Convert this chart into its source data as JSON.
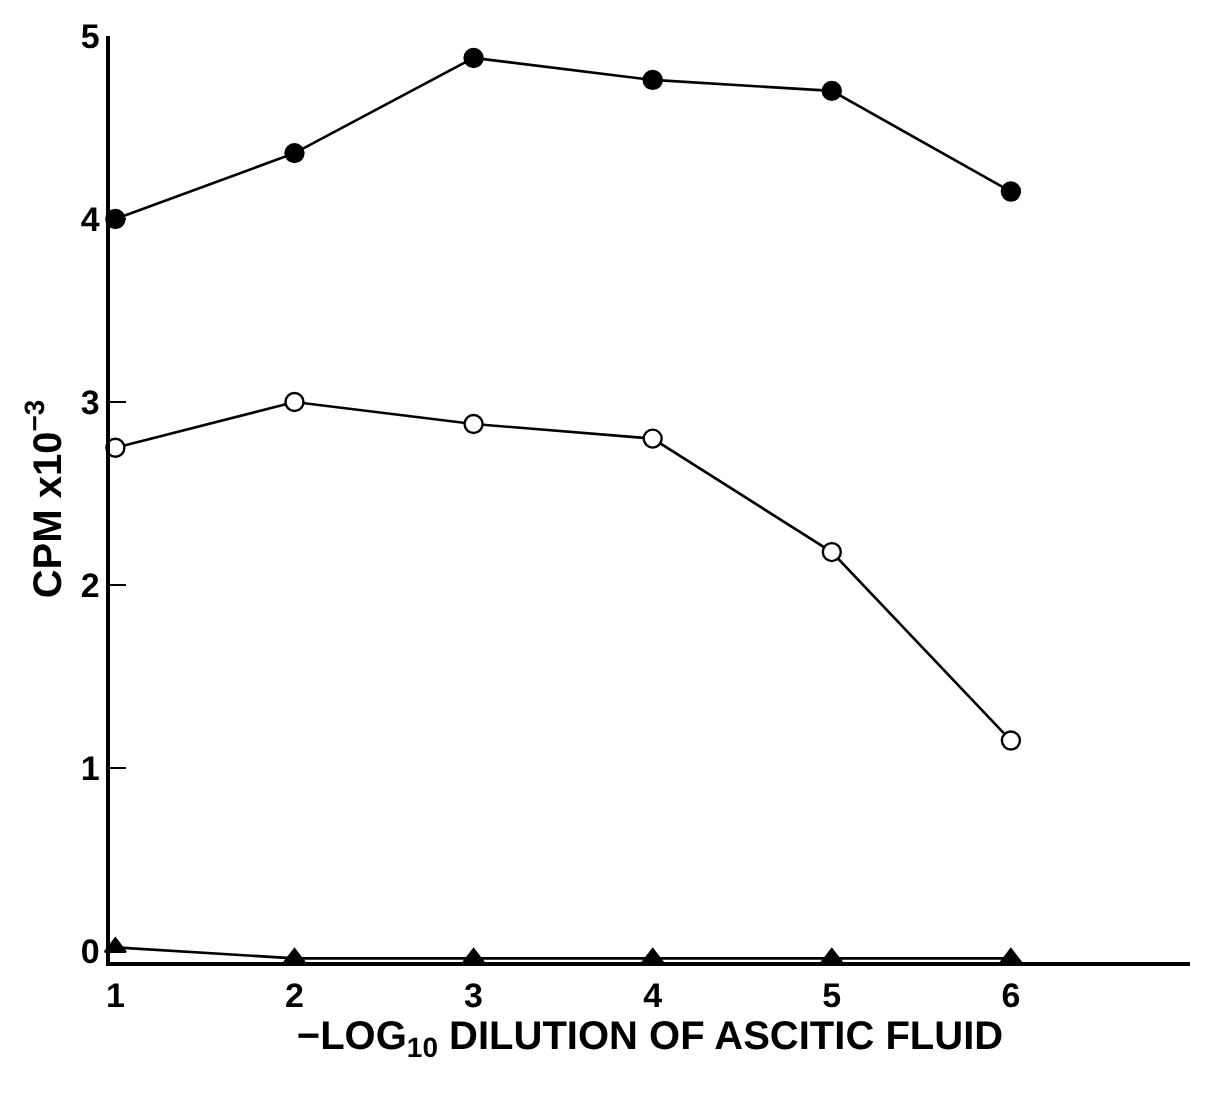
{
  "chart_data": {
    "type": "line",
    "xlabel": "−LOG$_{10}$ DILUTION OF ASCITIC FLUID",
    "ylabel": "CPM x10$^{−3}$",
    "x": [
      1,
      2,
      3,
      4,
      5,
      6
    ],
    "series": [
      {
        "color": "#000000",
        "marker": "circle",
        "values": [
          4.0,
          4.36,
          4.88,
          4.76,
          4.7,
          4.15
        ]
      },
      {
        "color": "#000000",
        "marker": "circle-open",
        "values": [
          2.75,
          3.0,
          2.88,
          2.8,
          2.18,
          1.15
        ]
      },
      {
        "color": "#000000",
        "marker": "triangle",
        "values": [
          0.02,
          -0.04,
          -0.04,
          -0.04,
          -0.04,
          -0.04
        ]
      }
    ],
    "xlim": [
      0.97,
      7
    ],
    "xticks": [
      1,
      2,
      3,
      4,
      5,
      6
    ],
    "ylim": [
      -0.06,
      5
    ],
    "yticks": [
      0,
      1,
      2,
      3,
      4,
      5
    ],
    "line_style": "solid"
  }
}
